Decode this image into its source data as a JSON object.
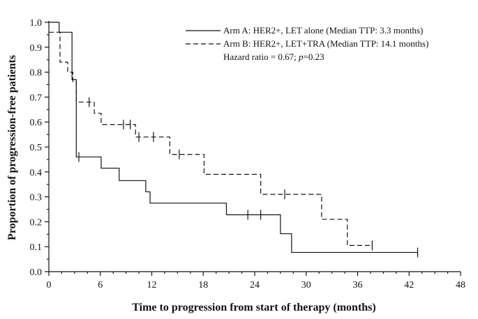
{
  "chart_data": {
    "type": "line",
    "xlabel": "Time to progression from start of therapy (months)",
    "ylabel": "Proportion of progression-free patients",
    "xlim": [
      0,
      48
    ],
    "ylim": [
      0,
      1.0
    ],
    "x_ticks": [
      "0",
      "6",
      "12",
      "18",
      "24",
      "30",
      "36",
      "42",
      "48"
    ],
    "x_tick_values": [
      0,
      6,
      12,
      18,
      24,
      30,
      36,
      42,
      48
    ],
    "y_ticks": [
      "0.0",
      "0.1",
      "0.2",
      "0.3",
      "0.4",
      "0.5",
      "0.6",
      "0.7",
      "0.8",
      "0.9",
      "1.0"
    ],
    "y_tick_values": [
      0,
      0.1,
      0.2,
      0.3,
      0.4,
      0.5,
      0.6,
      0.7,
      0.8,
      0.9,
      1.0
    ],
    "grid": false,
    "legend_position": "top-right",
    "series": [
      {
        "name": "Arm A: HER2+, LET alone (Median TTP: 3.3 months)",
        "dash": "solid",
        "steps": [
          [
            0,
            1.0
          ],
          [
            1.2,
            0.96
          ],
          [
            2.7,
            0.77
          ],
          [
            3.2,
            0.46
          ],
          [
            6.1,
            0.415
          ],
          [
            8.2,
            0.365
          ],
          [
            11.3,
            0.32
          ],
          [
            11.8,
            0.275
          ],
          [
            20.7,
            0.228
          ],
          [
            27.0,
            0.152
          ],
          [
            28.3,
            0.077
          ],
          [
            43.0,
            0.077
          ]
        ],
        "censored": [
          [
            3.5,
            0.46
          ],
          [
            23.2,
            0.228
          ],
          [
            24.7,
            0.228
          ],
          [
            43.0,
            0.077
          ]
        ]
      },
      {
        "name": "Arm B: HER2+, LET+TRA (Median TTP: 14.1 months)",
        "dash": "dashed",
        "steps": [
          [
            0,
            0.96
          ],
          [
            1.3,
            0.84
          ],
          [
            2.2,
            0.8
          ],
          [
            2.8,
            0.76
          ],
          [
            3.2,
            0.68
          ],
          [
            5.3,
            0.635
          ],
          [
            6.1,
            0.59
          ],
          [
            10.1,
            0.54
          ],
          [
            14.1,
            0.47
          ],
          [
            18.1,
            0.39
          ],
          [
            24.7,
            0.31
          ],
          [
            31.8,
            0.21
          ],
          [
            34.8,
            0.105
          ],
          [
            37.7,
            0.105
          ]
        ],
        "censored": [
          [
            4.7,
            0.68
          ],
          [
            8.7,
            0.59
          ],
          [
            9.5,
            0.59
          ],
          [
            10.5,
            0.54
          ],
          [
            12.2,
            0.54
          ],
          [
            15.2,
            0.47
          ],
          [
            27.5,
            0.31
          ],
          [
            37.7,
            0.105
          ]
        ]
      }
    ],
    "annotation": {
      "prefix": "Hazard ratio = 0.67; ",
      "p_symbol": "p",
      "suffix": "=0.23"
    }
  }
}
